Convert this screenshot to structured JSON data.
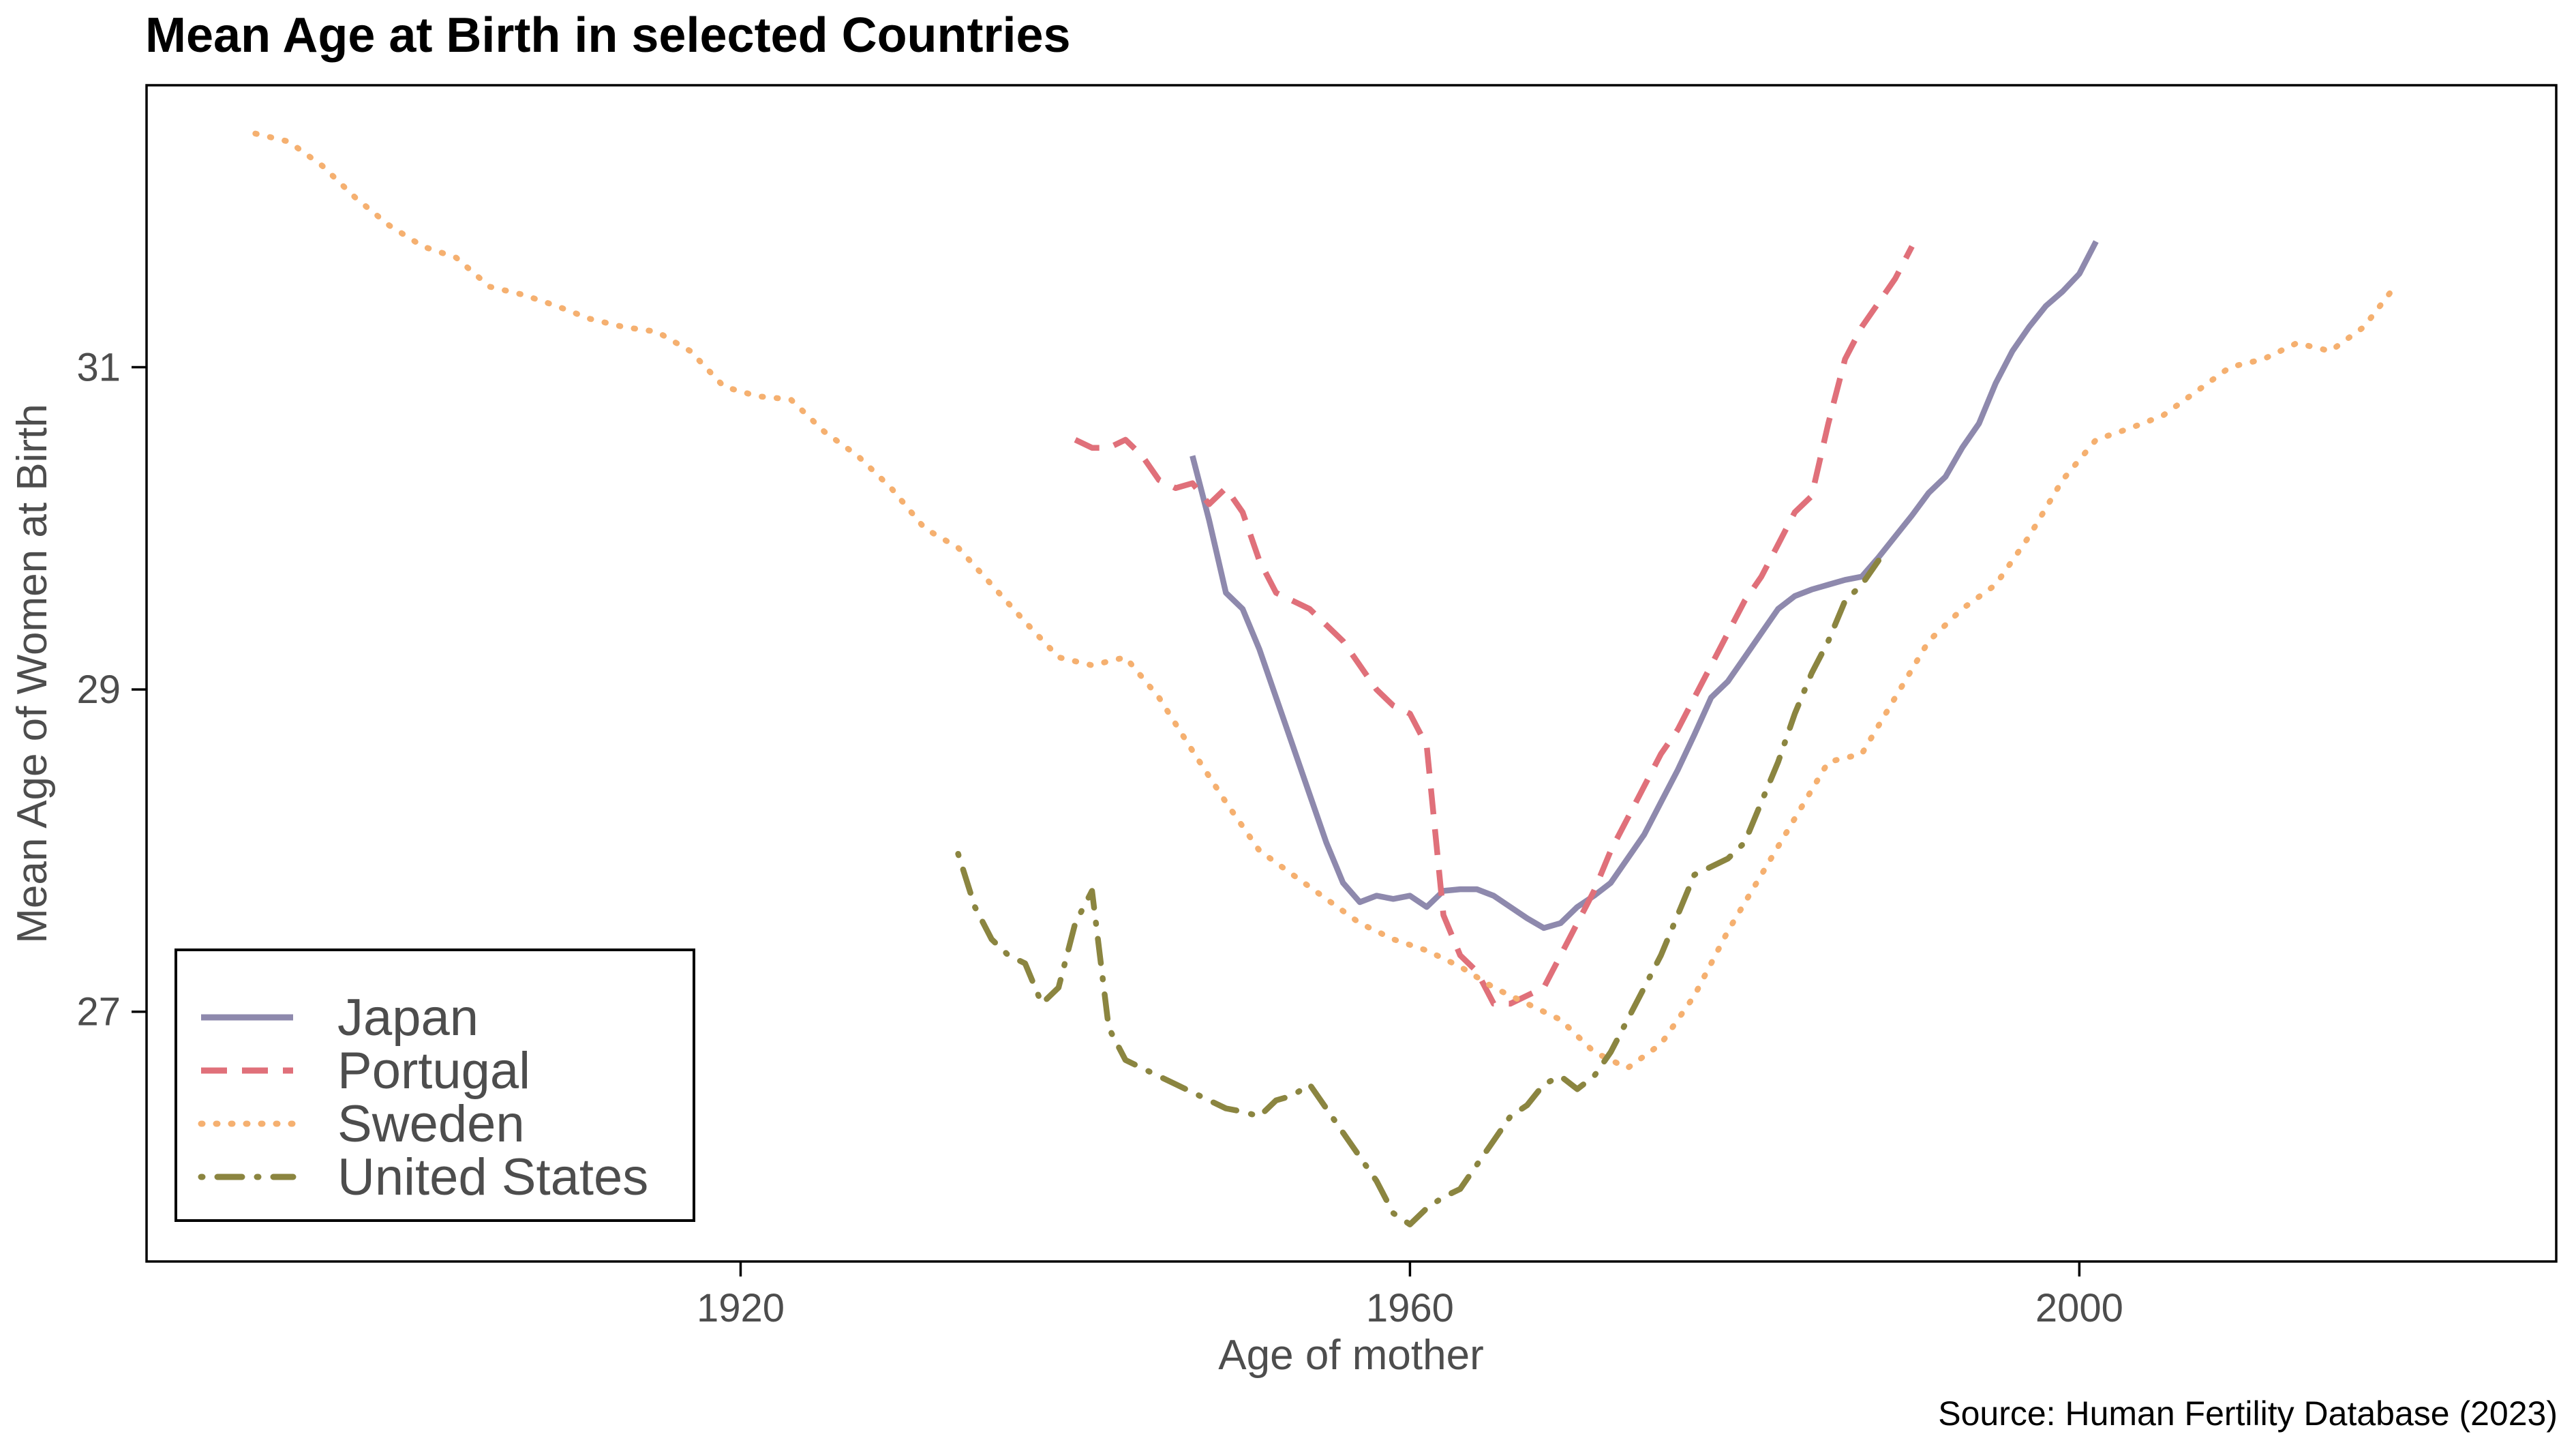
{
  "chart_data": {
    "type": "line",
    "title": "Mean Age at Birth in selected Countries",
    "xlabel": "Age of mother",
    "ylabel": "Mean Age of Women at Birth",
    "caption": "Source: Human Fertility Database (2023)",
    "xlim": [
      1884.5,
      2028.5
    ],
    "ylim": [
      25.45,
      32.75
    ],
    "x_ticks": [
      1920,
      1960,
      2000
    ],
    "y_ticks": [
      27,
      29,
      31
    ],
    "grid": false,
    "legend_position": "bottom-left",
    "series": [
      {
        "name": "Japan",
        "color": "#8e89ad",
        "dash": "solid",
        "points": [
          [
            1947,
            30.45
          ],
          [
            1948,
            30.05
          ],
          [
            1949,
            29.6
          ],
          [
            1950,
            29.5
          ],
          [
            1951,
            29.25
          ],
          [
            1952,
            28.95
          ],
          [
            1953,
            28.65
          ],
          [
            1954,
            28.35
          ],
          [
            1955,
            28.05
          ],
          [
            1956,
            27.8
          ],
          [
            1957,
            27.68
          ],
          [
            1958,
            27.72
          ],
          [
            1959,
            27.7
          ],
          [
            1960,
            27.72
          ],
          [
            1961,
            27.65
          ],
          [
            1962,
            27.75
          ],
          [
            1963,
            27.76
          ],
          [
            1964,
            27.76
          ],
          [
            1965,
            27.72
          ],
          [
            1966,
            27.65
          ],
          [
            1967,
            27.58
          ],
          [
            1968,
            27.52
          ],
          [
            1969,
            27.55
          ],
          [
            1970,
            27.65
          ],
          [
            1971,
            27.72
          ],
          [
            1972,
            27.8
          ],
          [
            1973,
            27.95
          ],
          [
            1974,
            28.1
          ],
          [
            1975,
            28.3
          ],
          [
            1976,
            28.5
          ],
          [
            1977,
            28.72
          ],
          [
            1978,
            28.95
          ],
          [
            1979,
            29.05
          ],
          [
            1980,
            29.2
          ],
          [
            1981,
            29.35
          ],
          [
            1982,
            29.5
          ],
          [
            1983,
            29.58
          ],
          [
            1984,
            29.62
          ],
          [
            1985,
            29.65
          ],
          [
            1986,
            29.68
          ],
          [
            1987,
            29.7
          ],
          [
            1988,
            29.82
          ],
          [
            1989,
            29.95
          ],
          [
            1990,
            30.08
          ],
          [
            1991,
            30.22
          ],
          [
            1992,
            30.32
          ],
          [
            1993,
            30.5
          ],
          [
            1994,
            30.65
          ],
          [
            1995,
            30.9
          ],
          [
            1996,
            31.1
          ],
          [
            1997,
            31.25
          ],
          [
            1998,
            31.38
          ],
          [
            1999,
            31.47
          ],
          [
            2000,
            31.58
          ],
          [
            2001,
            31.78
          ]
        ]
      },
      {
        "name": "Portugal",
        "color": "#e0707a",
        "dash": "dashed",
        "points": [
          [
            1940,
            30.55
          ],
          [
            1941,
            30.5
          ],
          [
            1942,
            30.5
          ],
          [
            1943,
            30.55
          ],
          [
            1944,
            30.45
          ],
          [
            1945,
            30.3
          ],
          [
            1946,
            30.25
          ],
          [
            1947,
            30.28
          ],
          [
            1948,
            30.15
          ],
          [
            1949,
            30.25
          ],
          [
            1950,
            30.1
          ],
          [
            1951,
            29.8
          ],
          [
            1952,
            29.6
          ],
          [
            1953,
            29.55
          ],
          [
            1954,
            29.5
          ],
          [
            1955,
            29.4
          ],
          [
            1956,
            29.3
          ],
          [
            1957,
            29.15
          ],
          [
            1958,
            29.0
          ],
          [
            1959,
            28.9
          ],
          [
            1960,
            28.85
          ],
          [
            1961,
            28.65
          ],
          [
            1962,
            27.6
          ],
          [
            1963,
            27.35
          ],
          [
            1964,
            27.25
          ],
          [
            1965,
            27.05
          ],
          [
            1966,
            27.05
          ],
          [
            1967,
            27.1
          ],
          [
            1968,
            27.15
          ],
          [
            1969,
            27.35
          ],
          [
            1970,
            27.55
          ],
          [
            1971,
            27.75
          ],
          [
            1972,
            28.0
          ],
          [
            1973,
            28.2
          ],
          [
            1974,
            28.4
          ],
          [
            1975,
            28.6
          ],
          [
            1976,
            28.75
          ],
          [
            1977,
            28.95
          ],
          [
            1978,
            29.15
          ],
          [
            1979,
            29.35
          ],
          [
            1980,
            29.55
          ],
          [
            1981,
            29.7
          ],
          [
            1982,
            29.9
          ],
          [
            1983,
            30.1
          ],
          [
            1984,
            30.2
          ],
          [
            1985,
            30.65
          ],
          [
            1986,
            31.05
          ],
          [
            1987,
            31.25
          ],
          [
            1988,
            31.4
          ],
          [
            1989,
            31.55
          ],
          [
            1990,
            31.75
          ]
        ]
      },
      {
        "name": "Sweden",
        "color": "#f5b070",
        "dash": "dotted",
        "points": [
          [
            1891,
            32.45
          ],
          [
            1893,
            32.4
          ],
          [
            1895,
            32.25
          ],
          [
            1897,
            32.05
          ],
          [
            1899,
            31.88
          ],
          [
            1901,
            31.75
          ],
          [
            1903,
            31.68
          ],
          [
            1905,
            31.5
          ],
          [
            1907,
            31.45
          ],
          [
            1909,
            31.38
          ],
          [
            1911,
            31.3
          ],
          [
            1913,
            31.25
          ],
          [
            1915,
            31.22
          ],
          [
            1917,
            31.1
          ],
          [
            1919,
            30.88
          ],
          [
            1921,
            30.82
          ],
          [
            1923,
            30.8
          ],
          [
            1925,
            30.6
          ],
          [
            1927,
            30.45
          ],
          [
            1929,
            30.25
          ],
          [
            1931,
            30.0
          ],
          [
            1933,
            29.88
          ],
          [
            1935,
            29.65
          ],
          [
            1937,
            29.42
          ],
          [
            1939,
            29.2
          ],
          [
            1941,
            29.15
          ],
          [
            1943,
            29.2
          ],
          [
            1945,
            28.95
          ],
          [
            1947,
            28.62
          ],
          [
            1949,
            28.3
          ],
          [
            1951,
            28.0
          ],
          [
            1953,
            27.85
          ],
          [
            1955,
            27.7
          ],
          [
            1957,
            27.55
          ],
          [
            1959,
            27.45
          ],
          [
            1961,
            27.38
          ],
          [
            1963,
            27.28
          ],
          [
            1965,
            27.15
          ],
          [
            1967,
            27.05
          ],
          [
            1969,
            26.95
          ],
          [
            1971,
            26.75
          ],
          [
            1973,
            26.65
          ],
          [
            1975,
            26.8
          ],
          [
            1977,
            27.1
          ],
          [
            1979,
            27.5
          ],
          [
            1981,
            27.85
          ],
          [
            1983,
            28.2
          ],
          [
            1985,
            28.55
          ],
          [
            1987,
            28.6
          ],
          [
            1989,
            28.95
          ],
          [
            1991,
            29.3
          ],
          [
            1993,
            29.5
          ],
          [
            1995,
            29.65
          ],
          [
            1997,
            29.95
          ],
          [
            1999,
            30.3
          ],
          [
            2001,
            30.55
          ],
          [
            2003,
            30.62
          ],
          [
            2005,
            30.7
          ],
          [
            2007,
            30.85
          ],
          [
            2009,
            31.0
          ],
          [
            2011,
            31.05
          ],
          [
            2013,
            31.15
          ],
          [
            2015,
            31.1
          ],
          [
            2017,
            31.25
          ],
          [
            2019,
            31.52
          ]
        ]
      },
      {
        "name": "United States",
        "color": "#8b8540",
        "dash": "dash-dot",
        "points": [
          [
            1933,
            27.98
          ],
          [
            1934,
            27.65
          ],
          [
            1935,
            27.45
          ],
          [
            1936,
            27.35
          ],
          [
            1937,
            27.3
          ],
          [
            1938,
            27.05
          ],
          [
            1939,
            27.15
          ],
          [
            1940,
            27.55
          ],
          [
            1941,
            27.75
          ],
          [
            1942,
            26.9
          ],
          [
            1943,
            26.7
          ],
          [
            1944,
            26.65
          ],
          [
            1945,
            26.6
          ],
          [
            1946,
            26.55
          ],
          [
            1947,
            26.5
          ],
          [
            1948,
            26.45
          ],
          [
            1949,
            26.4
          ],
          [
            1950,
            26.38
          ],
          [
            1951,
            26.35
          ],
          [
            1952,
            26.45
          ],
          [
            1953,
            26.48
          ],
          [
            1954,
            26.55
          ],
          [
            1955,
            26.4
          ],
          [
            1956,
            26.25
          ],
          [
            1957,
            26.1
          ],
          [
            1958,
            25.95
          ],
          [
            1959,
            25.75
          ],
          [
            1960,
            25.68
          ],
          [
            1961,
            25.78
          ],
          [
            1962,
            25.85
          ],
          [
            1963,
            25.9
          ],
          [
            1964,
            26.05
          ],
          [
            1965,
            26.2
          ],
          [
            1966,
            26.35
          ],
          [
            1967,
            26.42
          ],
          [
            1968,
            26.55
          ],
          [
            1969,
            26.6
          ],
          [
            1970,
            26.52
          ],
          [
            1971,
            26.6
          ],
          [
            1972,
            26.75
          ],
          [
            1973,
            26.95
          ],
          [
            1974,
            27.15
          ],
          [
            1975,
            27.35
          ],
          [
            1976,
            27.6
          ],
          [
            1977,
            27.85
          ],
          [
            1978,
            27.9
          ],
          [
            1979,
            27.95
          ],
          [
            1980,
            28.05
          ],
          [
            1981,
            28.3
          ],
          [
            1982,
            28.55
          ],
          [
            1983,
            28.85
          ],
          [
            1984,
            29.1
          ],
          [
            1985,
            29.3
          ],
          [
            1986,
            29.55
          ],
          [
            1987,
            29.65
          ],
          [
            1988,
            29.8
          ]
        ]
      }
    ]
  }
}
